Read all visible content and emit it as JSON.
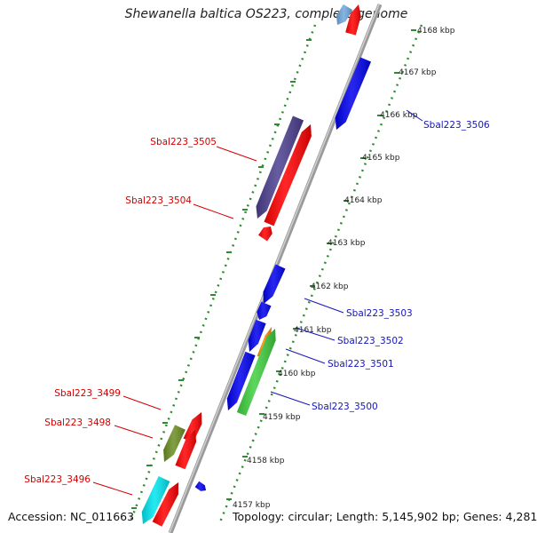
{
  "title": "Shewanella baltica OS223, complete genome",
  "footer": {
    "accession": "Accession: NC_011663",
    "topology": "Topology: circular; Length: 5,145,902 bp; Genes: 4,281"
  },
  "ruler": [
    "4157 kbp",
    "4158 kbp",
    "4159 kbp",
    "4160 kbp",
    "4161 kbp",
    "4162 kbp",
    "4163 kbp",
    "4164 kbp",
    "4165 kbp",
    "4166 kbp",
    "4167 kbp",
    "4168 kbp"
  ],
  "gene_labels": {
    "left": [
      "Sbal223_3505",
      "Sbal223_3504",
      "Sbal223_3499",
      "Sbal223_3498",
      "Sbal223_3496"
    ],
    "right": [
      "Sbal223_3506",
      "Sbal223_3503",
      "Sbal223_3502",
      "Sbal223_3501",
      "Sbal223_3500"
    ]
  },
  "colors": {
    "forward": "#ff0000",
    "reverse": "#0000ee",
    "purple": "#4b3f8f",
    "green": "#3fcf3f",
    "olive": "#6b8e23",
    "orange": "#ff8c00",
    "cyan": "#00e5ee",
    "dots": "#2e8b2e",
    "backbone": "#888888"
  }
}
